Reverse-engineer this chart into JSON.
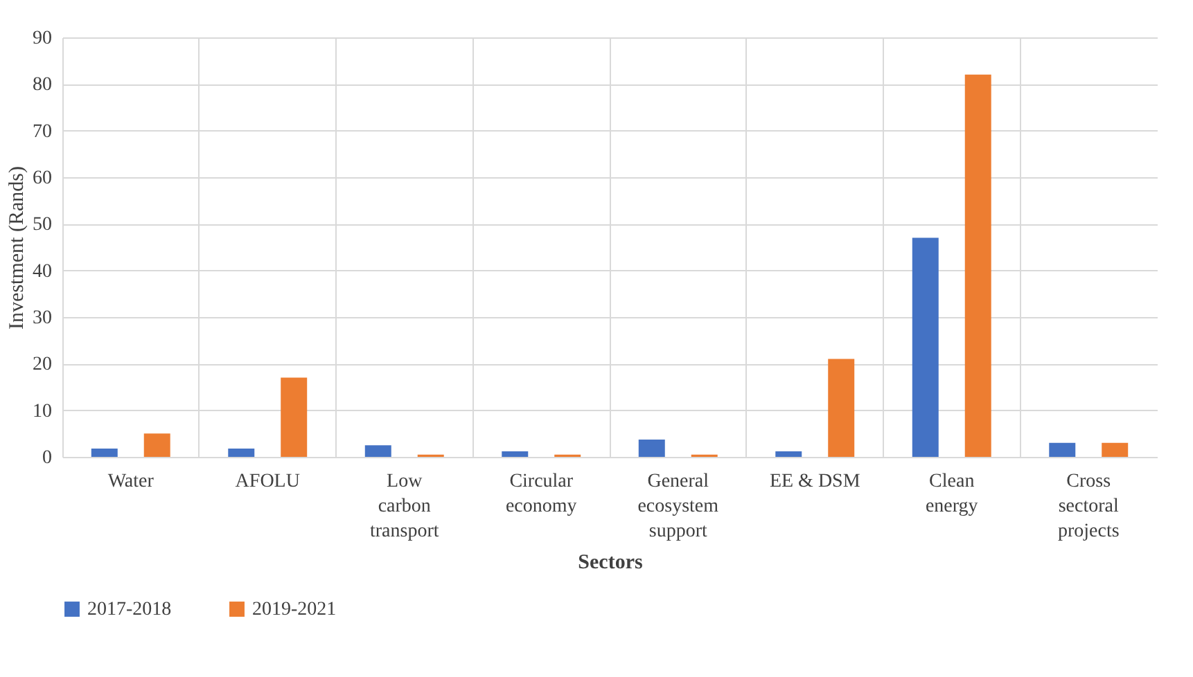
{
  "chart_data": {
    "type": "bar",
    "xlabel": "Sectors",
    "ylabel": "Investment (Rands)",
    "categories": [
      "Water",
      "AFOLU",
      "Low carbon transport",
      "Circular economy",
      "General ecosystem support",
      "EE & DSM",
      "Clean energy",
      "Cross sectoral projects"
    ],
    "series": [
      {
        "name": "2017-2018",
        "color": "#4472c4",
        "values": [
          1.8,
          1.8,
          2.5,
          1.2,
          3.7,
          1.2,
          47,
          3
        ]
      },
      {
        "name": "2019-2021",
        "color": "#ed7d31",
        "values": [
          5,
          17,
          0.5,
          0.5,
          0.5,
          21,
          82,
          3
        ]
      }
    ],
    "ylim": [
      0,
      90
    ],
    "yticks": [
      0,
      10,
      20,
      30,
      40,
      50,
      60,
      70,
      80,
      90
    ],
    "grid": true,
    "legend": "bottom"
  }
}
